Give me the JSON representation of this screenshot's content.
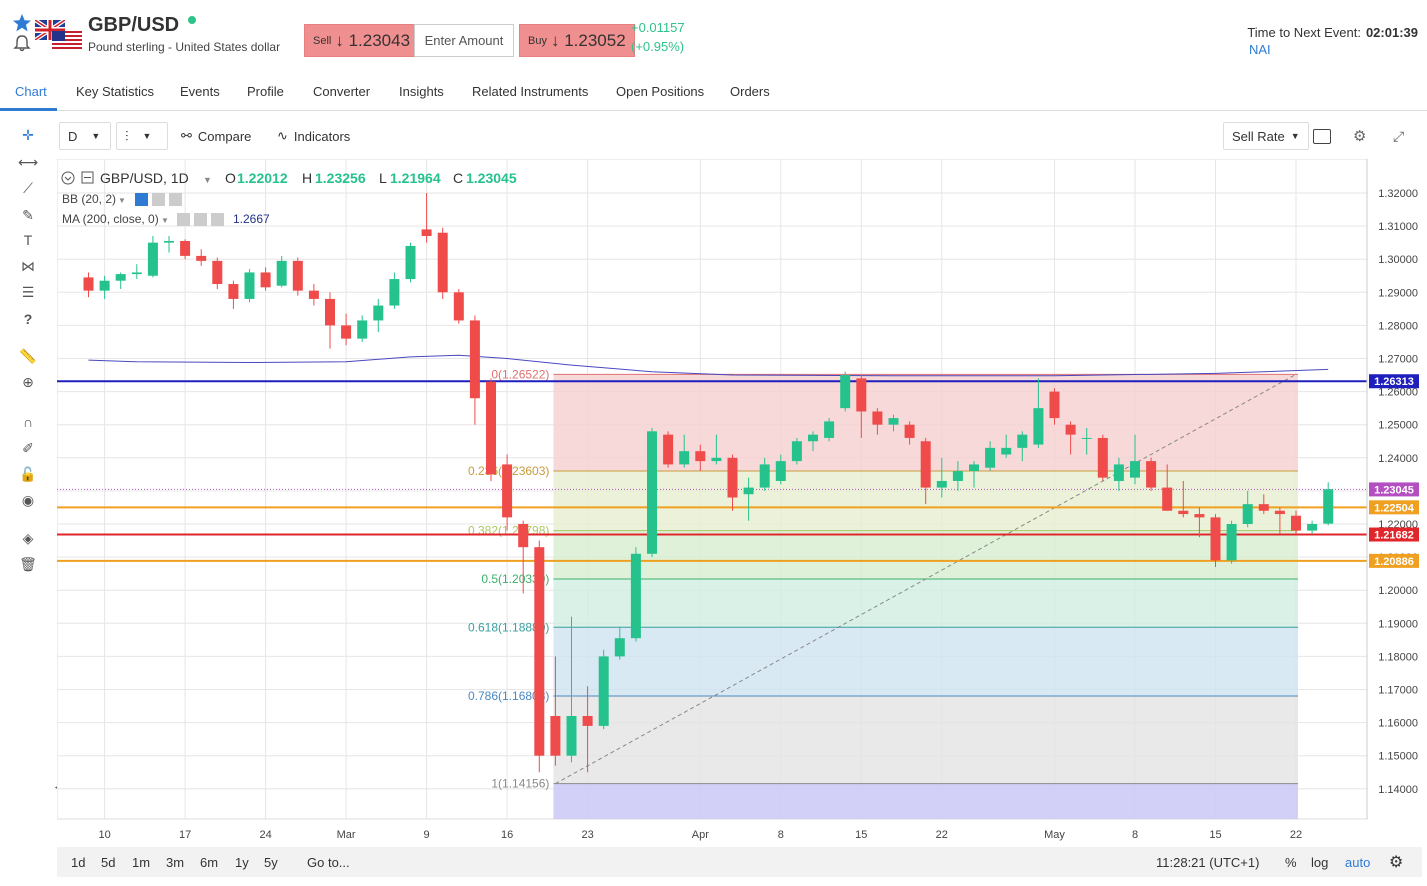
{
  "header": {
    "symbol": "GBP/USD",
    "description": "Pound sterling - United States dollar",
    "sell_label": "Sell",
    "sell_price": "↓ 1.23043",
    "amount_placeholder": "Enter Amount",
    "buy_label": "Buy",
    "buy_price": "↓ 1.23052",
    "change_abs": "+0.01157",
    "change_pct": "(+0.95%)",
    "event_label": "Time to Next Event:",
    "event_time": "02:01:39",
    "event_name": "NAI",
    "icons": [
      "star-icon",
      "bell-icon",
      "uk-flag-icon",
      "us-flag-icon"
    ]
  },
  "tabs": [
    "Chart",
    "Key Statistics",
    "Events",
    "Profile",
    "Converter",
    "Insights",
    "Related Instruments",
    "Open Positions",
    "Orders"
  ],
  "active_tab": "Chart",
  "toolbar": {
    "interval": "D",
    "compare": "Compare",
    "indicators": "Indicators",
    "sell_rate": "Sell Rate"
  },
  "legend": {
    "title": "GBP/USD, 1D",
    "o_label": "O",
    "o": "1.22012",
    "h_label": "H",
    "h": "1.23256",
    "l_label": "L",
    "l": "1.21964",
    "c_label": "C",
    "c": "1.23045",
    "bb": "BB (20, 2)",
    "ma": "MA (200, close, 0)",
    "ma_value": "1.2667"
  },
  "bottom": {
    "ranges": [
      "1d",
      "5d",
      "1m",
      "3m",
      "6m",
      "1y",
      "5y"
    ],
    "goto": "Go to...",
    "clock": "11:28:21 (UTC+1)",
    "pct": "%",
    "log": "log",
    "auto": "auto"
  },
  "chart_data": {
    "type": "candlestick",
    "title": "GBP/USD, 1D",
    "ylim": [
      1.135,
      1.325
    ],
    "y_ticks": [
      1.32,
      1.31,
      1.3,
      1.29,
      1.28,
      1.27,
      1.26,
      1.25,
      1.24,
      1.23,
      1.22,
      1.21,
      1.2,
      1.19,
      1.18,
      1.17,
      1.16,
      1.15,
      1.14
    ],
    "y_tick_labels": [
      "1.32000",
      "1.31000",
      "1.30000",
      "1.29000",
      "1.28000",
      "1.27000",
      "1.26000",
      "1.25000",
      "1.24000",
      "1.23000",
      "1.22000",
      "1.21000",
      "1.20000",
      "1.19000",
      "1.18000",
      "1.17000",
      "1.16000",
      "1.15000",
      "1.14000"
    ],
    "x_ticks": [
      {
        "label": "10",
        "idx": 1
      },
      {
        "label": "17",
        "idx": 6
      },
      {
        "label": "24",
        "idx": 11
      },
      {
        "label": "Mar",
        "idx": 16
      },
      {
        "label": "9",
        "idx": 21
      },
      {
        "label": "16",
        "idx": 26
      },
      {
        "label": "23",
        "idx": 31
      },
      {
        "label": "Apr",
        "idx": 38
      },
      {
        "label": "8",
        "idx": 43
      },
      {
        "label": "15",
        "idx": 48
      },
      {
        "label": "22",
        "idx": 53
      },
      {
        "label": "May",
        "idx": 60
      },
      {
        "label": "8",
        "idx": 65
      },
      {
        "label": "15",
        "idx": 70
      },
      {
        "label": "22",
        "idx": 75
      }
    ],
    "candles": [
      [
        1.2945,
        1.296,
        1.2885,
        1.2905
      ],
      [
        1.2905,
        1.295,
        1.288,
        1.2935
      ],
      [
        1.2935,
        1.296,
        1.291,
        1.2955
      ],
      [
        1.2955,
        1.2985,
        1.294,
        1.296
      ],
      [
        1.295,
        1.307,
        1.2945,
        1.305
      ],
      [
        1.305,
        1.307,
        1.302,
        1.3055
      ],
      [
        1.3055,
        1.306,
        1.3,
        1.301
      ],
      [
        1.301,
        1.303,
        1.298,
        1.2995
      ],
      [
        1.2995,
        1.3005,
        1.291,
        1.2925
      ],
      [
        1.2925,
        1.2935,
        1.285,
        1.288
      ],
      [
        1.288,
        1.297,
        1.287,
        1.296
      ],
      [
        1.296,
        1.2975,
        1.2905,
        1.2915
      ],
      [
        1.292,
        1.301,
        1.2915,
        1.2995
      ],
      [
        1.2995,
        1.3005,
        1.289,
        1.2905
      ],
      [
        1.2905,
        1.2925,
        1.286,
        1.288
      ],
      [
        1.288,
        1.29,
        1.273,
        1.28
      ],
      [
        1.28,
        1.2835,
        1.274,
        1.276
      ],
      [
        1.276,
        1.283,
        1.275,
        1.2815
      ],
      [
        1.2815,
        1.288,
        1.278,
        1.286
      ],
      [
        1.286,
        1.296,
        1.285,
        1.294
      ],
      [
        1.294,
        1.305,
        1.293,
        1.304
      ],
      [
        1.309,
        1.32,
        1.305,
        1.307
      ],
      [
        1.308,
        1.3095,
        1.288,
        1.29
      ],
      [
        1.29,
        1.291,
        1.2805,
        1.2815
      ],
      [
        1.2815,
        1.283,
        1.25,
        1.258
      ],
      [
        1.263,
        1.264,
        1.233,
        1.235
      ],
      [
        1.238,
        1.241,
        1.218,
        1.222
      ],
      [
        1.22,
        1.221,
        1.199,
        1.213
      ],
      [
        1.213,
        1.215,
        1.145,
        1.15
      ],
      [
        1.162,
        1.18,
        1.147,
        1.15
      ],
      [
        1.15,
        1.192,
        1.148,
        1.162
      ],
      [
        1.162,
        1.171,
        1.145,
        1.159
      ],
      [
        1.159,
        1.182,
        1.158,
        1.18
      ],
      [
        1.18,
        1.189,
        1.179,
        1.1855
      ],
      [
        1.1855,
        1.213,
        1.1845,
        1.211
      ],
      [
        1.211,
        1.249,
        1.21,
        1.248
      ],
      [
        1.247,
        1.248,
        1.237,
        1.238
      ],
      [
        1.238,
        1.247,
        1.237,
        1.242
      ],
      [
        1.242,
        1.244,
        1.236,
        1.239
      ],
      [
        1.239,
        1.247,
        1.238,
        1.24
      ],
      [
        1.24,
        1.241,
        1.224,
        1.228
      ],
      [
        1.229,
        1.234,
        1.221,
        1.231
      ],
      [
        1.231,
        1.24,
        1.23,
        1.238
      ],
      [
        1.233,
        1.241,
        1.232,
        1.239
      ],
      [
        1.239,
        1.246,
        1.238,
        1.245
      ],
      [
        1.245,
        1.248,
        1.242,
        1.247
      ],
      [
        1.246,
        1.252,
        1.245,
        1.251
      ],
      [
        1.255,
        1.266,
        1.254,
        1.265
      ],
      [
        1.264,
        1.265,
        1.246,
        1.254
      ],
      [
        1.254,
        1.255,
        1.247,
        1.25
      ],
      [
        1.25,
        1.253,
        1.248,
        1.252
      ],
      [
        1.25,
        1.251,
        1.244,
        1.246
      ],
      [
        1.245,
        1.246,
        1.226,
        1.231
      ],
      [
        1.231,
        1.24,
        1.228,
        1.233
      ],
      [
        1.233,
        1.239,
        1.23,
        1.236
      ],
      [
        1.236,
        1.239,
        1.231,
        1.238
      ],
      [
        1.237,
        1.245,
        1.236,
        1.243
      ],
      [
        1.241,
        1.247,
        1.24,
        1.243
      ],
      [
        1.243,
        1.248,
        1.239,
        1.247
      ],
      [
        1.244,
        1.264,
        1.243,
        1.255
      ],
      [
        1.26,
        1.261,
        1.25,
        1.252
      ],
      [
        1.25,
        1.251,
        1.241,
        1.247
      ],
      [
        1.246,
        1.249,
        1.241,
        1.246
      ],
      [
        1.246,
        1.247,
        1.233,
        1.234
      ],
      [
        1.233,
        1.24,
        1.23,
        1.238
      ],
      [
        1.234,
        1.247,
        1.232,
        1.239
      ],
      [
        1.239,
        1.24,
        1.23,
        1.231
      ],
      [
        1.231,
        1.238,
        1.224,
        1.224
      ],
      [
        1.224,
        1.233,
        1.222,
        1.223
      ],
      [
        1.223,
        1.225,
        1.216,
        1.222
      ],
      [
        1.222,
        1.223,
        1.207,
        1.209
      ],
      [
        1.209,
        1.221,
        1.208,
        1.22
      ],
      [
        1.22,
        1.23,
        1.219,
        1.226
      ],
      [
        1.226,
        1.229,
        1.223,
        1.224
      ],
      [
        1.224,
        1.225,
        1.217,
        1.223
      ],
      [
        1.2225,
        1.224,
        1.217,
        1.218
      ],
      [
        1.218,
        1.221,
        1.217,
        1.22
      ],
      [
        1.2201,
        1.2326,
        1.2196,
        1.2305
      ]
    ],
    "ma200": [
      [
        0,
        1.2695
      ],
      [
        3,
        1.269
      ],
      [
        10,
        1.2688
      ],
      [
        16,
        1.269
      ],
      [
        20,
        1.2705
      ],
      [
        23,
        1.271
      ],
      [
        26,
        1.27
      ],
      [
        30,
        1.268
      ],
      [
        35,
        1.266
      ],
      [
        40,
        1.265
      ],
      [
        50,
        1.2648
      ],
      [
        60,
        1.2648
      ],
      [
        70,
        1.2655
      ],
      [
        77,
        1.2667
      ]
    ],
    "horizontal_lines": [
      {
        "value": 1.26313,
        "label": "1.26313",
        "color": "#1f1fbd"
      },
      {
        "value": 1.22504,
        "label": "1.22504",
        "color": "#f0a020"
      },
      {
        "value": 1.21682,
        "label": "1.21682",
        "color": "#e0262b"
      },
      {
        "value": 1.20886,
        "label": "1.20886",
        "color": "#f0a020"
      }
    ],
    "last_price": {
      "value": 1.23045,
      "label": "1.23045",
      "color": "#b44fc2"
    },
    "fibonacci": {
      "start_idx": 29,
      "end_idx": 75,
      "levels": [
        {
          "ratio": "0",
          "value": 1.26522,
          "label": "0(1.26522)"
        },
        {
          "ratio": "0.236",
          "value": 1.23603,
          "label": "0.236(1.23603)"
        },
        {
          "ratio": "0.382",
          "value": 1.21798,
          "label": "0.382(1.21798)"
        },
        {
          "ratio": "0.5",
          "value": 1.20339,
          "label": "0.5(1.20339)"
        },
        {
          "ratio": "0.618",
          "value": 1.1888,
          "label": "0.618(1.18880)"
        },
        {
          "ratio": "0.786",
          "value": 1.16803,
          "label": "0.786(1.16803)"
        },
        {
          "ratio": "1",
          "value": 1.14156,
          "label": "1(1.14156)"
        }
      ]
    },
    "colors": {
      "up": "#26c28e",
      "down": "#ef4b4b",
      "grid": "#e6e6e6"
    }
  }
}
